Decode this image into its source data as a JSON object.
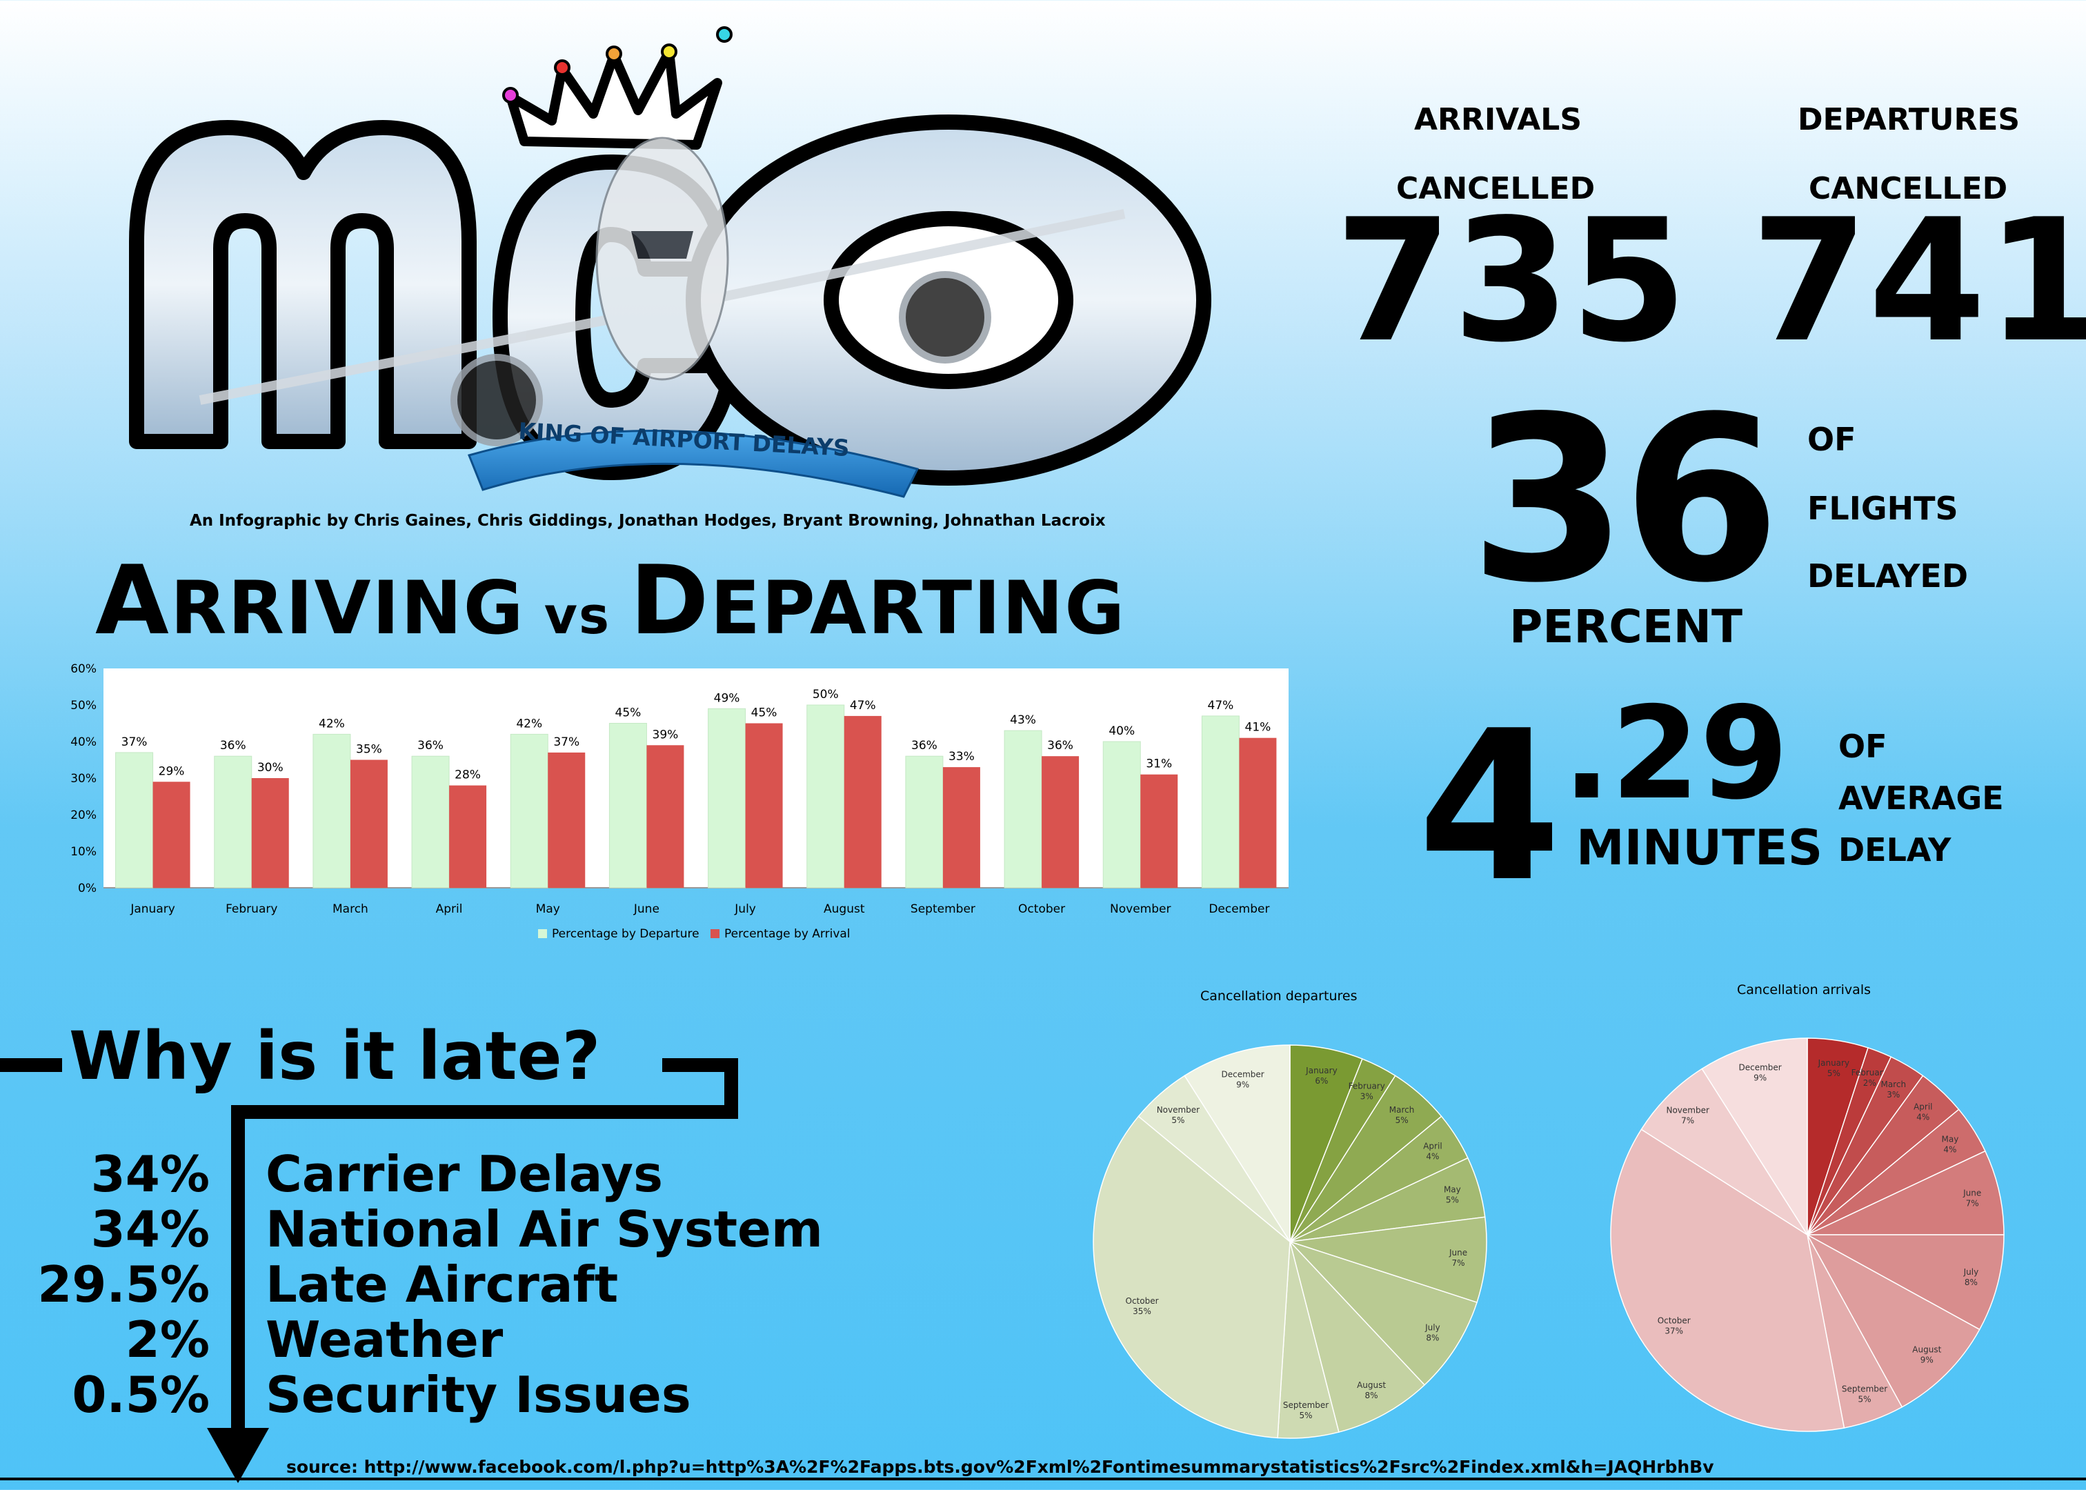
{
  "logo": {
    "letters": "MCO",
    "ribbon_text": "KING OF AIRPORT DELAYS"
  },
  "credit": "An Infographic by Chris Gaines, Chris Giddings, Jonathan Hodges, Bryant Browning, Johnathan Lacroix",
  "title": {
    "arriving": "Arriving",
    "vs": "vs",
    "departing": "Departing"
  },
  "stats": {
    "arrivals_label": "ARRIVALS",
    "departures_label": "DEPARTURES",
    "cancelled_label": "CANCELLED",
    "arrivals_cancelled": "735",
    "departures_cancelled": "741",
    "delayed_number": "36",
    "delayed_unit": "PERCENT",
    "delayed_of": "OF",
    "delayed_flights": "FLIGHTS",
    "delayed_word": "DELAYED",
    "avg_delay_int": "4",
    "avg_delay_frac": ".29",
    "avg_delay_unit": "MINUTES",
    "avg_of": "OF",
    "avg_average": "AVERAGE",
    "avg_delay": "DELAY"
  },
  "why": {
    "heading": "Why is it late?",
    "reasons": [
      {
        "pct": "34%",
        "label": "Carrier Delays"
      },
      {
        "pct": "34%",
        "label": "National Air System"
      },
      {
        "pct": "29.5%",
        "label": "Late Aircraft"
      },
      {
        "pct": "2%",
        "label": "Weather"
      },
      {
        "pct": "0.5%",
        "label": "Security Issues"
      }
    ]
  },
  "source": "source: http://www.facebook.com/l.php?u=http%3A%2F%2Fapps.bts.gov%2Fxml%2Fontimesummarystatistics%2Fsrc%2Findex.xml&h=JAQHrbhBv",
  "colors": {
    "departure": "#d6f7d6",
    "arrival": "#d9534f",
    "pie_green_dark": "#7a9a32",
    "pie_red_dark": "#b52b2b"
  },
  "chart_data": [
    {
      "type": "bar",
      "title": "",
      "categories": [
        "January",
        "February",
        "March",
        "April",
        "May",
        "June",
        "July",
        "August",
        "September",
        "October",
        "November",
        "December"
      ],
      "series": [
        {
          "name": "Percentage by Departure",
          "values": [
            37,
            36,
            42,
            36,
            42,
            45,
            49,
            50,
            36,
            43,
            40,
            47
          ]
        },
        {
          "name": "Percentage by Arrival",
          "values": [
            29,
            30,
            35,
            28,
            37,
            39,
            45,
            47,
            33,
            36,
            31,
            41
          ]
        }
      ],
      "ylim": [
        0,
        60
      ],
      "yticks": [
        "0%",
        "10%",
        "20%",
        "30%",
        "40%",
        "50%",
        "60%"
      ],
      "legend": "bottom",
      "value_suffix": "%"
    },
    {
      "type": "pie",
      "title": "Cancellation departures",
      "labels": [
        "January",
        "February",
        "March",
        "April",
        "May",
        "June",
        "July",
        "August",
        "September",
        "October",
        "November",
        "December"
      ],
      "values": [
        6,
        3,
        5,
        4,
        5,
        7,
        8,
        8,
        5,
        35,
        5,
        9
      ]
    },
    {
      "type": "pie",
      "title": "Cancellation arrivals",
      "labels": [
        "January",
        "February",
        "March",
        "April",
        "May",
        "June",
        "July",
        "August",
        "September",
        "October",
        "November",
        "December"
      ],
      "values": [
        5,
        2,
        3,
        4,
        4,
        7,
        8,
        9,
        5,
        37,
        7,
        9
      ]
    }
  ]
}
